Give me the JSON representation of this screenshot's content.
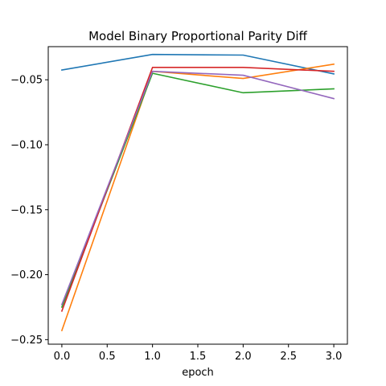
{
  "chart_data": {
    "type": "line",
    "title": "Model Binary Proportional Parity Diff",
    "xlabel": "epoch",
    "ylabel": "",
    "xlim": [
      -0.15,
      3.15
    ],
    "ylim": [
      -0.2535,
      -0.0245
    ],
    "xticks": [
      0.0,
      0.5,
      1.0,
      1.5,
      2.0,
      2.5,
      3.0
    ],
    "xtick_labels": [
      "0.0",
      "0.5",
      "1.0",
      "1.5",
      "2.0",
      "2.5",
      "3.0"
    ],
    "yticks": [
      -0.25,
      -0.2,
      -0.15,
      -0.1,
      -0.05
    ],
    "ytick_labels": [
      "−0.25",
      "−0.20",
      "−0.15",
      "−0.10",
      "−0.05"
    ],
    "grid": false,
    "x": [
      0,
      1,
      2,
      3
    ],
    "series": [
      {
        "color": "#1f77b4",
        "values": [
          -0.0425,
          -0.0305,
          -0.031,
          -0.0455
        ]
      },
      {
        "color": "#ff7f0e",
        "values": [
          -0.243,
          -0.0435,
          -0.049,
          -0.038
        ]
      },
      {
        "color": "#2ca02c",
        "values": [
          -0.225,
          -0.045,
          -0.06,
          -0.057
        ]
      },
      {
        "color": "#d62728",
        "values": [
          -0.228,
          -0.0405,
          -0.0405,
          -0.0435
        ]
      },
      {
        "color": "#9467bd",
        "values": [
          -0.223,
          -0.0435,
          -0.0465,
          -0.0645
        ]
      }
    ]
  }
}
